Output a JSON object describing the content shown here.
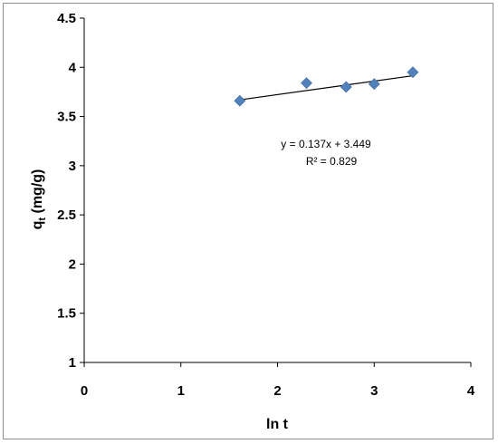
{
  "chart_data": {
    "type": "scatter",
    "title": "",
    "xlabel": "ln t",
    "ylabel": "q",
    "ylabel_subscript": "t",
    "ylabel_unit": " (mg/g)",
    "xlim": [
      0,
      4
    ],
    "ylim": [
      1,
      4.5
    ],
    "x_ticks": [
      0,
      1,
      2,
      3,
      4
    ],
    "y_ticks": [
      1,
      1.5,
      2,
      2.5,
      3,
      3.5,
      4,
      4.5
    ],
    "x_tick_labels": [
      "0",
      "1",
      "2",
      "3",
      "4"
    ],
    "y_tick_labels": [
      "1",
      "1.5",
      "2",
      "2.5",
      "3",
      "3.5",
      "4",
      "4.5"
    ],
    "grid": false,
    "legend": "none",
    "series": [
      {
        "x": [
          1.61,
          2.3,
          2.71,
          3.0,
          3.4
        ],
        "y": [
          3.66,
          3.84,
          3.8,
          3.83,
          3.95
        ],
        "marker": "diamond",
        "color": "#4F81BD"
      }
    ],
    "trendline": {
      "type": "linear",
      "slope": 0.137,
      "intercept": 3.449,
      "x_range": [
        1.61,
        3.4
      ],
      "color": "#000000"
    },
    "annotations": {
      "equation": "y = 0.137x + 3.449",
      "r_squared": "R² = 0.829"
    }
  }
}
